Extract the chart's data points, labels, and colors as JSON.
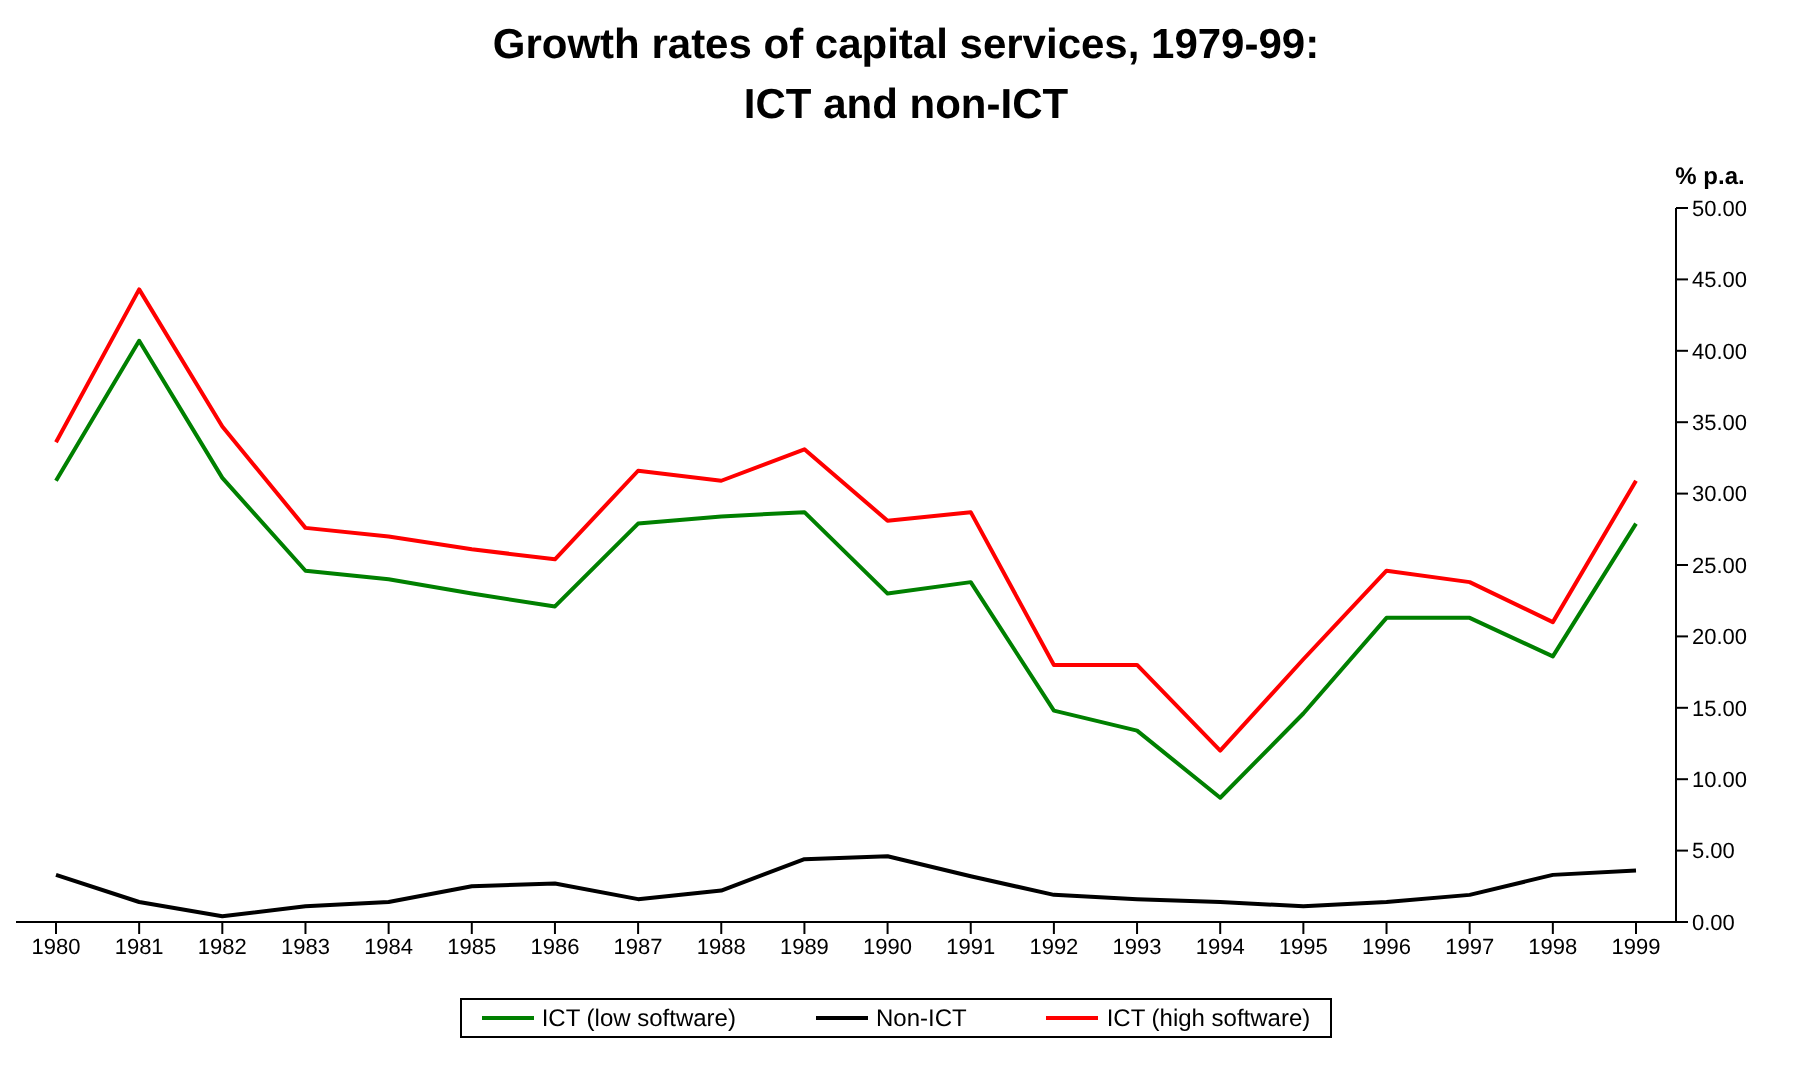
{
  "chart_data": {
    "type": "line",
    "title": "Growth rates of capital services, 1979-99:\nICT and non-ICT",
    "ylabel": "% p.a.",
    "categories": [
      "1980",
      "1981",
      "1982",
      "1983",
      "1984",
      "1985",
      "1986",
      "1987",
      "1988",
      "1989",
      "1990",
      "1991",
      "1992",
      "1993",
      "1994",
      "1995",
      "1996",
      "1997",
      "1998",
      "1999"
    ],
    "series": [
      {
        "name": "ICT (low software)",
        "color": "#008000",
        "values": [
          30.9,
          40.7,
          31.1,
          24.6,
          24.0,
          23.0,
          22.1,
          27.9,
          28.4,
          28.7,
          23.0,
          23.8,
          14.8,
          13.4,
          8.7,
          14.6,
          21.3,
          21.3,
          18.6,
          27.9
        ]
      },
      {
        "name": "Non-ICT",
        "color": "#000000",
        "values": [
          3.3,
          1.4,
          0.4,
          1.1,
          1.4,
          2.5,
          2.7,
          1.6,
          2.2,
          4.4,
          4.6,
          3.2,
          1.9,
          1.6,
          1.4,
          1.1,
          1.4,
          1.9,
          3.3,
          3.6
        ]
      },
      {
        "name": "ICT (high software)",
        "color": "#ff0000",
        "values": [
          33.6,
          44.3,
          34.7,
          27.6,
          27.0,
          26.1,
          25.4,
          31.6,
          30.9,
          33.1,
          28.1,
          28.7,
          18.0,
          18.0,
          12.0,
          18.4,
          24.6,
          23.8,
          21.0,
          30.9
        ]
      }
    ],
    "ylim": [
      0,
      50
    ],
    "yticks": [
      {
        "value": 0,
        "label": "0.00"
      },
      {
        "value": 5,
        "label": "5.00"
      },
      {
        "value": 10,
        "label": "10.00"
      },
      {
        "value": 15,
        "label": "15.00"
      },
      {
        "value": 20,
        "label": "20.00"
      },
      {
        "value": 25,
        "label": "25.00"
      },
      {
        "value": 30,
        "label": "30.00"
      },
      {
        "value": 35,
        "label": "35.00"
      },
      {
        "value": 40,
        "label": "40.00"
      },
      {
        "value": 45,
        "label": "45.00"
      },
      {
        "value": 50,
        "label": "50.00"
      }
    ],
    "grid": false,
    "legend": "bottom",
    "line_style": "solid"
  }
}
